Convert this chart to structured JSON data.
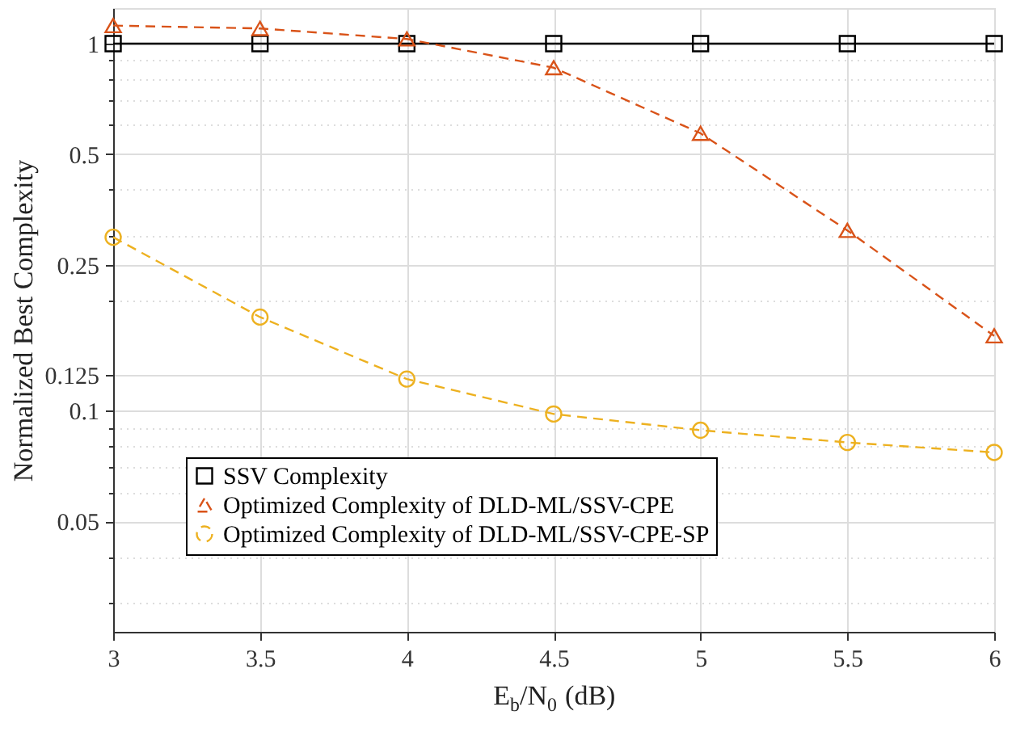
{
  "chart_data": {
    "type": "line",
    "xlabel": "E$_{b}$/N$_{0}$ (dB)",
    "ylabel": "Normalized Best Complexity",
    "x": [
      3,
      3.5,
      4,
      4.5,
      5,
      5.5,
      6
    ],
    "series": [
      {
        "name": "SSV Complexity",
        "color": "#000000",
        "marker": "square",
        "line_style": "solid",
        "values": [
          1,
          1,
          1,
          1,
          1,
          1,
          1
        ]
      },
      {
        "name": "Optimized Complexity of DLD-ML/SSV-CPE",
        "color": "#d95319",
        "marker": "triangle",
        "line_style": "dashed",
        "values": [
          1.12,
          1.1,
          1.03,
          0.86,
          0.57,
          0.31,
          0.16
        ]
      },
      {
        "name": "Optimized Complexity of DLD-ML/SSV-CPE-SP",
        "color": "#edb120",
        "marker": "circle",
        "line_style": "dashed",
        "values": [
          0.297,
          0.18,
          0.122,
          0.098,
          0.0885,
          0.082,
          0.077
        ]
      }
    ],
    "log": "y",
    "xlim": [
      3,
      6
    ],
    "xticks": [
      3,
      3.5,
      4,
      4.5,
      5,
      5.5,
      6
    ],
    "ylim": [
      0.025,
      1.25
    ],
    "yticks": [
      {
        "value": 0.03,
        "label": null
      },
      {
        "value": 0.04,
        "label": null
      },
      0.05,
      {
        "value": 0.06,
        "label": null
      },
      {
        "value": 0.07,
        "label": null
      },
      {
        "value": 0.08,
        "label": null
      },
      {
        "value": 0.09,
        "label": null
      },
      0.1,
      0.125,
      {
        "value": 0.2,
        "label": null
      },
      0.25,
      {
        "value": 0.3,
        "label": null
      },
      {
        "value": 0.4,
        "label": null
      },
      0.5,
      {
        "value": 0.6,
        "label": null
      },
      {
        "value": 0.7,
        "label": null
      },
      {
        "value": 0.8,
        "label": null
      },
      {
        "value": 0.9,
        "label": null
      },
      1
    ],
    "grid": true,
    "legend": "bottom left"
  }
}
